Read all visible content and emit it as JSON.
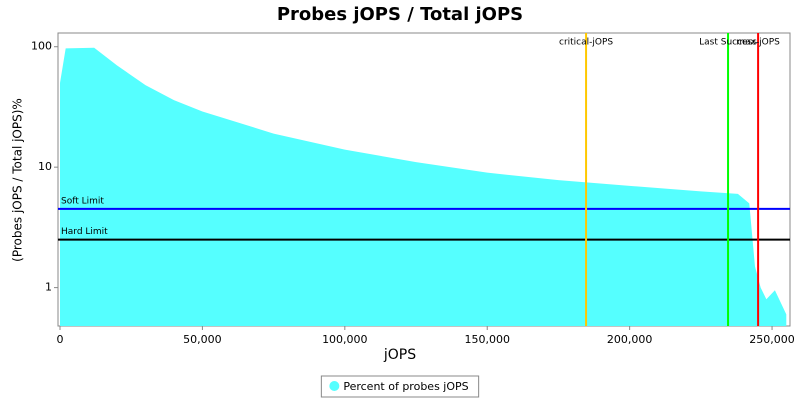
{
  "chart_data": {
    "type": "area",
    "title": "Probes jOPS / Total jOPS",
    "x_label": "jOPS",
    "y_label": "(Probes jOPS / Total jOPS)%",
    "x": [
      0,
      2000,
      12000,
      20000,
      30000,
      40000,
      50000,
      75000,
      100000,
      125000,
      150000,
      175000,
      200000,
      225000,
      238000,
      242000,
      244000,
      246000,
      248000,
      251000,
      255000
    ],
    "series": [
      {
        "name": "Percent of probes jOPS",
        "color": "#55ffff",
        "values": [
          50,
          97,
          98,
          70,
          48,
          36,
          29,
          19,
          14,
          11,
          9,
          7.8,
          7,
          6.3,
          6,
          5,
          1.5,
          1.0,
          0.8,
          0.95,
          0.6
        ]
      }
    ],
    "xlim": [
      -700,
      256300
    ],
    "ylim": [
      0.48,
      130
    ],
    "log_y": true,
    "xticks": [
      0,
      {
        "value": 50000,
        "label": "50,000"
      },
      {
        "value": 100000,
        "label": "100,000"
      },
      {
        "value": 150000,
        "label": "150,000"
      },
      {
        "value": 200000,
        "label": "200,000"
      },
      {
        "value": 250000,
        "label": "250,000"
      }
    ],
    "yticks": [
      1,
      10,
      100
    ],
    "markers": [
      {
        "label": "critical-jOPS",
        "value": 184700,
        "color": "#ffc800"
      },
      {
        "label": "Last Success",
        "value": 234550,
        "color": "#00ff00"
      },
      {
        "label": "max-jOPS",
        "value": 245100,
        "color": "#ff0000"
      }
    ],
    "thresholds": [
      {
        "label": "Soft Limit",
        "value": 4.5,
        "color": "#0000ff"
      },
      {
        "label": "Hard Limit",
        "value": 2.5,
        "color": "#000000"
      }
    ],
    "legend": "bottom"
  }
}
